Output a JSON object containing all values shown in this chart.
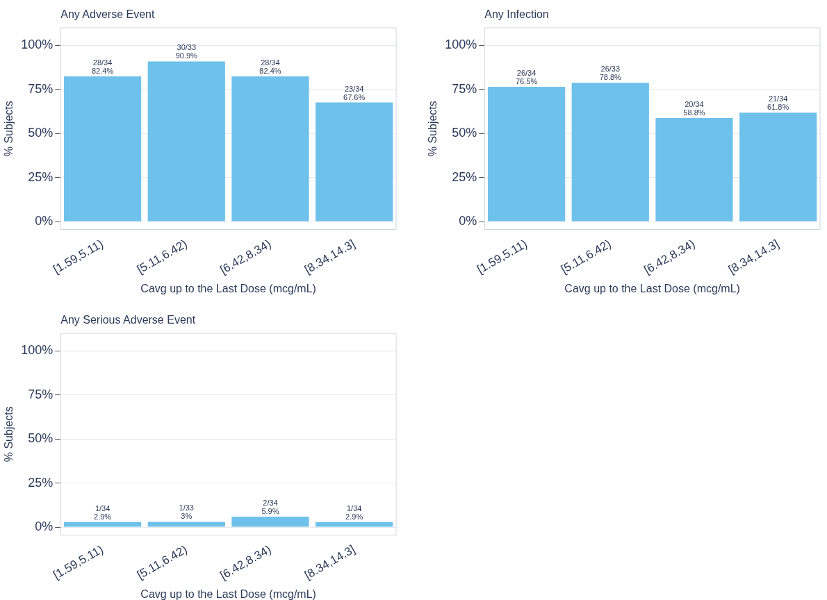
{
  "chart_data": [
    {
      "type": "bar",
      "title": "Any Adverse Event",
      "xlabel": "Cavg up to the Last Dose (mcg/mL)",
      "ylabel": "% Subjects",
      "categories": [
        "[1.59,5.11)",
        "[5.11,6.42)",
        "[6.42,8.34)",
        "[8.34,14.3]"
      ],
      "values": [
        82.4,
        90.9,
        82.4,
        67.6
      ],
      "value_labels": [
        "28/34\n82.4%",
        "30/33\n90.9%",
        "28/34\n82.4%",
        "23/34\n67.6%"
      ],
      "color": "#6ec1ea",
      "ylim": [
        -4.5,
        110
      ],
      "yticks": [
        {
          "value": 0,
          "label": "0%"
        },
        {
          "value": 25,
          "label": "25%"
        },
        {
          "value": 50,
          "label": "50%"
        },
        {
          "value": 75,
          "label": "75%"
        },
        {
          "value": 100,
          "label": "100%"
        }
      ],
      "grid": "y"
    },
    {
      "type": "bar",
      "title": "Any Infection",
      "xlabel": "Cavg up to the Last Dose (mcg/mL)",
      "ylabel": "% Subjects",
      "categories": [
        "[1.59,5.11)",
        "[5.11,6.42)",
        "[6.42,8.34)",
        "[8.34,14.3]"
      ],
      "values": [
        76.5,
        78.8,
        58.8,
        61.8
      ],
      "value_labels": [
        "26/34\n76.5%",
        "26/33\n78.8%",
        "20/34\n58.8%",
        "21/34\n61.8%"
      ],
      "color": "#6ec1ea",
      "ylim": [
        -4.5,
        110
      ],
      "yticks": [
        {
          "value": 0,
          "label": "0%"
        },
        {
          "value": 25,
          "label": "25%"
        },
        {
          "value": 50,
          "label": "50%"
        },
        {
          "value": 75,
          "label": "75%"
        },
        {
          "value": 100,
          "label": "100%"
        }
      ],
      "grid": "y"
    },
    {
      "type": "bar",
      "title": "Any Serious Adverse Event",
      "xlabel": "Cavg up to the Last Dose (mcg/mL)",
      "ylabel": "% Subjects",
      "categories": [
        "[1.59,5.11)",
        "[5.11,6.42)",
        "[6.42,8.34)",
        "[8.34,14.3]"
      ],
      "values": [
        2.9,
        3,
        5.9,
        2.9
      ],
      "value_labels": [
        "1/34\n2.9%",
        "1/33\n3%",
        "2/34\n5.9%",
        "1/34\n2.9%"
      ],
      "color": "#6ec1ea",
      "ylim": [
        -4.5,
        110
      ],
      "yticks": [
        {
          "value": 0,
          "label": "0%"
        },
        {
          "value": 25,
          "label": "25%"
        },
        {
          "value": 50,
          "label": "50%"
        },
        {
          "value": 75,
          "label": "75%"
        },
        {
          "value": 100,
          "label": "100%"
        }
      ],
      "grid": "y"
    }
  ]
}
